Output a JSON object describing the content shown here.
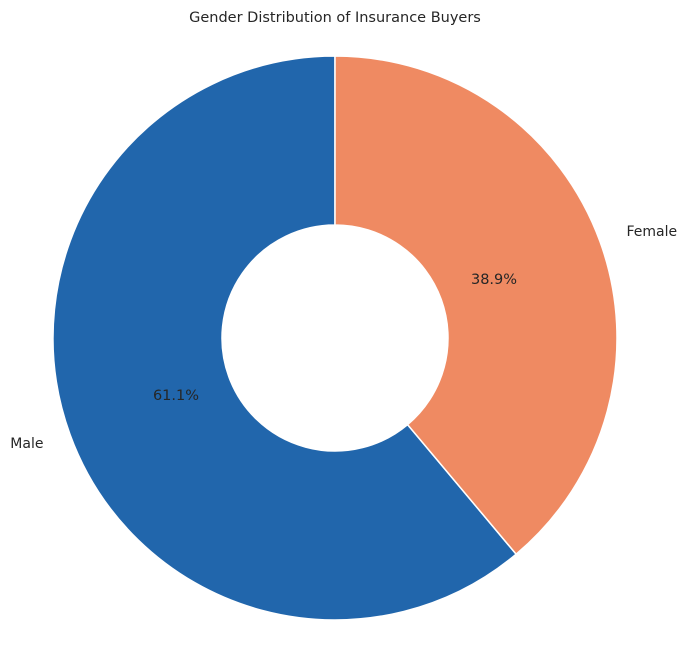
{
  "chart_data": {
    "type": "pie",
    "title": "Gender Distribution of Insurance Buyers",
    "categories": [
      "Male",
      "Female"
    ],
    "values": [
      61.1,
      38.9
    ],
    "value_labels": [
      "61.1%",
      "38.9%"
    ],
    "colors": [
      "#2166ac",
      "#ef8a62"
    ],
    "donut": true,
    "start_angle": 90,
    "direction": "counterclockwise",
    "legend": "none"
  }
}
